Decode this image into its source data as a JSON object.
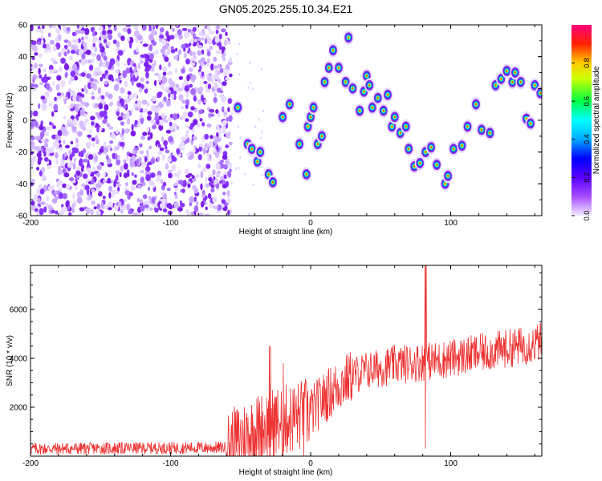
{
  "title": "GN05.2025.255.10.34.E21",
  "chart_data": [
    {
      "type": "heatmap",
      "xlabel": "Height of straight line (km)",
      "ylabel": "Frequency (Hz)",
      "xlim": [
        -200,
        165
      ],
      "ylim": [
        -60,
        60
      ],
      "xticks": [
        -200,
        -100,
        0,
        100
      ],
      "yticks": [
        -60,
        -40,
        -20,
        0,
        20,
        40,
        60
      ],
      "noise_region_x": [
        -200,
        -57
      ],
      "colorbar": {
        "label": "Normalized spectral amplitude",
        "range": [
          0,
          1
        ],
        "ticks": [
          "0.0",
          "0.2",
          "0.4",
          "0.6",
          "0.8"
        ],
        "colors": [
          "#f0e6ff",
          "#8a2be2",
          "#0000ff",
          "#00ffff",
          "#00ff00",
          "#ffff00",
          "#ff0000",
          "#ff007f"
        ]
      },
      "hot_spots": [
        [
          -52,
          8
        ],
        [
          -45,
          -15
        ],
        [
          -42,
          -18
        ],
        [
          -38,
          -26
        ],
        [
          -36,
          -20
        ],
        [
          -30,
          -34
        ],
        [
          -27,
          -39
        ],
        [
          -20,
          2
        ],
        [
          -15,
          10
        ],
        [
          -8,
          -15
        ],
        [
          -3,
          -34
        ],
        [
          -2,
          -4
        ],
        [
          0,
          2
        ],
        [
          2,
          8
        ],
        [
          5,
          -15
        ],
        [
          8,
          -10
        ],
        [
          10,
          24
        ],
        [
          13,
          33
        ],
        [
          16,
          44
        ],
        [
          20,
          33
        ],
        [
          25,
          24
        ],
        [
          27,
          52
        ],
        [
          30,
          20
        ],
        [
          35,
          6
        ],
        [
          38,
          18
        ],
        [
          40,
          28
        ],
        [
          42,
          22
        ],
        [
          44,
          8
        ],
        [
          48,
          14
        ],
        [
          52,
          6
        ],
        [
          55,
          16
        ],
        [
          58,
          -4
        ],
        [
          60,
          2
        ],
        [
          64,
          -8
        ],
        [
          68,
          -4
        ],
        [
          70,
          -18
        ],
        [
          74,
          -29
        ],
        [
          78,
          -27
        ],
        [
          82,
          -20
        ],
        [
          86,
          -17
        ],
        [
          90,
          -28
        ],
        [
          96,
          -40
        ],
        [
          98,
          -35
        ],
        [
          102,
          -18
        ],
        [
          108,
          -16
        ],
        [
          112,
          -4
        ],
        [
          118,
          10
        ],
        [
          122,
          -6
        ],
        [
          128,
          -8
        ],
        [
          132,
          22
        ],
        [
          136,
          26
        ],
        [
          140,
          31
        ],
        [
          144,
          24
        ],
        [
          146,
          30
        ],
        [
          150,
          24
        ],
        [
          154,
          1
        ],
        [
          157,
          -2
        ],
        [
          160,
          22
        ],
        [
          164,
          17
        ]
      ]
    },
    {
      "type": "line",
      "xlabel": "Height of straight line (km)",
      "ylabel": "SNR (10 * v/v)",
      "xlim": [
        -200,
        165
      ],
      "ylim": [
        0,
        7800
      ],
      "xticks": [
        -200,
        -100,
        0,
        100
      ],
      "yticks": [
        2000,
        4000,
        6000
      ],
      "color": "#ee3333",
      "series": [
        {
          "name": "SNR",
          "trend_x": [
            -200,
            -60,
            -45,
            -30,
            -10,
            0,
            10,
            20,
            30,
            40,
            50,
            60,
            70,
            80,
            90,
            100,
            120,
            140,
            160,
            165
          ],
          "trend_y": [
            300,
            350,
            900,
            1300,
            1600,
            1800,
            2400,
            2900,
            3300,
            3500,
            3600,
            3750,
            3800,
            3850,
            3900,
            4000,
            4200,
            4400,
            4600,
            4700
          ],
          "spikes": [
            [
              -29,
              4500,
              -200
            ],
            [
              -20,
              3800,
              -100
            ],
            [
              -5,
              2600,
              -200
            ],
            [
              82,
              7800,
              300
            ]
          ]
        }
      ]
    }
  ]
}
